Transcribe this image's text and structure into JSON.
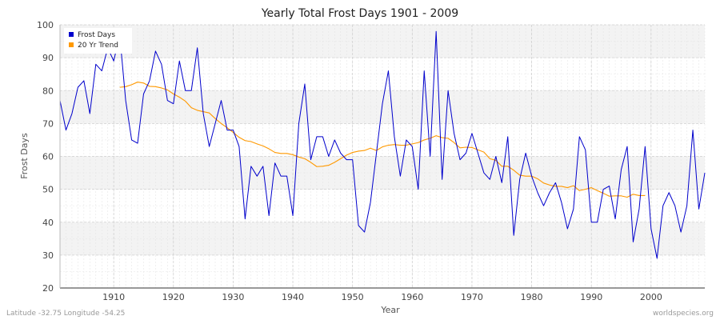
{
  "chart_data": {
    "type": "line",
    "title": "Yearly Total Frost Days 1901 - 2009",
    "xlabel": "Year",
    "ylabel": "Frost Days",
    "xlim": [
      1901,
      2009
    ],
    "ylim": [
      20,
      100
    ],
    "x_ticks": [
      1910,
      1920,
      1930,
      1940,
      1950,
      1960,
      1970,
      1980,
      1990,
      2000
    ],
    "y_ticks": [
      20,
      30,
      40,
      50,
      60,
      70,
      80,
      90,
      100
    ],
    "grid": true,
    "legend_position": "top-left",
    "series": [
      {
        "name": "Frost Days",
        "color": "#0000cc",
        "x": [
          1901,
          1902,
          1903,
          1904,
          1905,
          1906,
          1907,
          1908,
          1909,
          1910,
          1911,
          1912,
          1913,
          1914,
          1915,
          1916,
          1917,
          1918,
          1919,
          1920,
          1921,
          1922,
          1923,
          1924,
          1925,
          1926,
          1927,
          1928,
          1929,
          1930,
          1931,
          1932,
          1933,
          1934,
          1935,
          1936,
          1937,
          1938,
          1939,
          1940,
          1941,
          1942,
          1943,
          1944,
          1945,
          1946,
          1947,
          1948,
          1949,
          1950,
          1951,
          1952,
          1953,
          1954,
          1955,
          1956,
          1957,
          1958,
          1959,
          1960,
          1961,
          1962,
          1963,
          1964,
          1965,
          1966,
          1967,
          1968,
          1969,
          1970,
          1971,
          1972,
          1973,
          1974,
          1975,
          1976,
          1977,
          1978,
          1979,
          1980,
          1981,
          1982,
          1983,
          1984,
          1985,
          1986,
          1987,
          1988,
          1989,
          1990,
          1991,
          1992,
          1993,
          1994,
          1995,
          1996,
          1997,
          1998,
          1999,
          2000,
          2001,
          2002,
          2003,
          2004,
          2005,
          2006,
          2007,
          2008,
          2009
        ],
        "values": [
          77,
          68,
          73,
          81,
          83,
          73,
          88,
          86,
          93,
          89,
          97,
          77,
          65,
          64,
          79,
          83,
          92,
          88,
          77,
          76,
          89,
          80,
          80,
          93,
          73,
          63,
          70,
          77,
          68,
          68,
          63,
          41,
          57,
          54,
          57,
          42,
          58,
          54,
          54,
          42,
          70,
          82,
          59,
          66,
          66,
          60,
          65,
          61,
          59,
          59,
          39,
          37,
          46,
          61,
          76,
          86,
          66,
          54,
          65,
          63,
          50,
          86,
          60,
          98,
          53,
          80,
          67,
          59,
          61,
          67,
          61,
          55,
          53,
          60,
          52,
          66,
          36,
          53,
          61,
          54,
          49,
          45,
          49,
          52,
          46,
          38,
          44,
          66,
          62,
          40,
          40,
          50,
          51,
          41,
          56,
          63,
          34,
          44,
          63,
          38,
          29,
          45,
          49,
          45,
          37,
          45,
          68,
          44,
          55
        ]
      },
      {
        "name": "20 Yr Trend",
        "color": "#ff9900",
        "x": [
          1911,
          1912,
          1913,
          1914,
          1915,
          1916,
          1917,
          1918,
          1919,
          1920,
          1921,
          1922,
          1923,
          1924,
          1925,
          1926,
          1927,
          1928,
          1929,
          1930,
          1931,
          1932,
          1933,
          1934,
          1935,
          1936,
          1937,
          1938,
          1939,
          1940,
          1941,
          1942,
          1943,
          1944,
          1945,
          1946,
          1947,
          1948,
          1949,
          1950,
          1951,
          1952,
          1953,
          1954,
          1955,
          1956,
          1957,
          1958,
          1959,
          1960,
          1961,
          1962,
          1963,
          1964,
          1965,
          1966,
          1967,
          1968,
          1969,
          1970,
          1971,
          1972,
          1973,
          1974,
          1975,
          1976,
          1977,
          1978,
          1979,
          1980,
          1981,
          1982,
          1983,
          1984,
          1985,
          1986,
          1987,
          1988,
          1989,
          1990,
          1991,
          1992,
          1993,
          1994,
          1995,
          1996,
          1997,
          1998,
          1999
        ],
        "values": [
          81,
          81.2,
          81.8,
          82.6,
          82.3,
          81.3,
          81.2,
          80.8,
          80.2,
          79,
          78,
          76.8,
          74.8,
          74,
          73.6,
          73.2,
          71.5,
          70,
          68.7,
          67.3,
          65.8,
          64.8,
          64.5,
          63.8,
          63.2,
          62.3,
          61.2,
          60.9,
          60.9,
          60.5,
          59.8,
          59.3,
          58.2,
          56.9,
          57,
          57.3,
          58.2,
          59.3,
          60.4,
          61.2,
          61.6,
          61.8,
          62.5,
          61.8,
          62.9,
          63.4,
          63.6,
          63.4,
          63.4,
          63.8,
          64.2,
          65,
          65.5,
          66.3,
          65.7,
          65.5,
          64.2,
          62.6,
          62.8,
          62.7,
          62,
          61.3,
          59.3,
          58.8,
          57,
          57,
          55.8,
          54.3,
          54,
          54,
          53.2,
          51.9,
          51.3,
          50.9,
          50.9,
          50.5,
          51.1,
          49.6,
          50,
          50.5,
          49.6,
          48.8,
          47.9,
          48,
          48,
          47.6,
          48.5,
          48.1,
          48.1
        ]
      }
    ]
  },
  "footer": {
    "left": "Latitude -32.75 Longitude -54.25",
    "right": "worldspecies.org"
  }
}
